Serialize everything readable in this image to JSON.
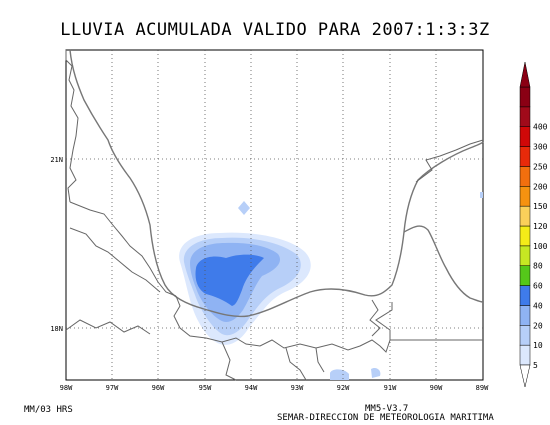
{
  "title": "LLUVIA ACUMULADA VALIDO PARA 2007:1:3:3Z",
  "footer": {
    "left": "MM/03 HRS",
    "right_line1": "MM5-V3.7",
    "right_line2": "SEMAR-DIRECCION DE METEOROLOGIA MARITIMA"
  },
  "map": {
    "lon_labels": [
      "98W",
      "97W",
      "96W",
      "95W",
      "94W",
      "93W",
      "92W",
      "91W",
      "90W",
      "89W"
    ],
    "lat_labels": [
      "21N",
      "18N"
    ],
    "coast_color": "#777777",
    "grid_color": "#555555"
  },
  "colorbar": {
    "levels": [
      "5",
      "10",
      "20",
      "40",
      "60",
      "80",
      "100",
      "120",
      "150",
      "200",
      "250",
      "300",
      "400"
    ],
    "colors": [
      "#dce8fd",
      "#b7cff8",
      "#8fb3f3",
      "#3f7bea",
      "#55c81a",
      "#c6e823",
      "#f4ec18",
      "#fad05a",
      "#f69210",
      "#f26f0e",
      "#e82a0a",
      "#d00808",
      "#a00a1a",
      "#8a0014"
    ]
  }
}
